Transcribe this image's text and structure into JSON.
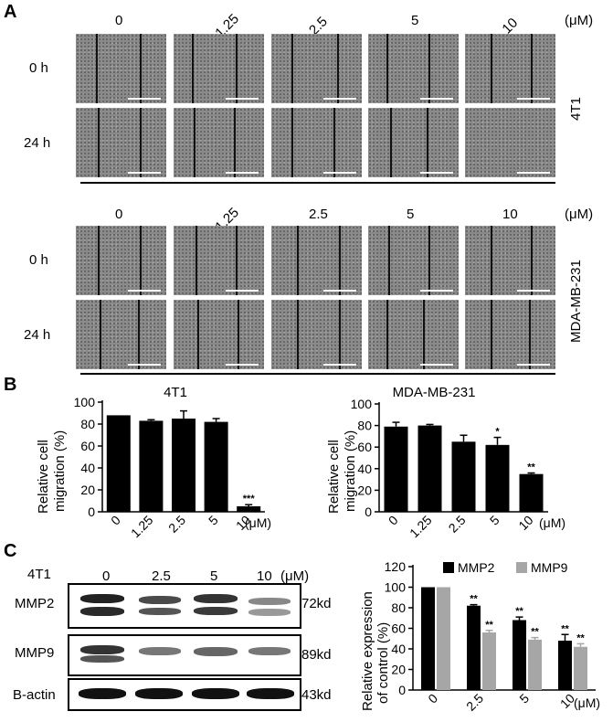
{
  "panel_a": {
    "letter": "A",
    "unit": "(μM)",
    "concentrations": [
      "0",
      "1.25",
      "2.5",
      "5",
      "10"
    ],
    "time_rows": [
      "0 h",
      "24 h"
    ],
    "cell_lines": [
      "4T1",
      "MDA-MB-231"
    ]
  },
  "panel_b": {
    "letter": "B"
  },
  "panel_c": {
    "letter": "C",
    "cell_line": "4T1",
    "unit": "(μM)",
    "concentrations": [
      "0",
      "2.5",
      "5",
      "10"
    ],
    "blots": [
      {
        "name": "MMP2",
        "size": "72kd"
      },
      {
        "name": "MMP9",
        "size": "89kd"
      },
      {
        "name": "B-actin",
        "size": "43kd"
      }
    ]
  },
  "chart_data": [
    {
      "type": "bar",
      "title": "4T1",
      "ylabel": "Relative cell migration (%)",
      "xunit": "(μM)",
      "categories": [
        "0",
        "1.25",
        "2.5",
        "5",
        "10"
      ],
      "values": [
        88,
        83,
        85,
        82,
        5
      ],
      "errors": [
        0,
        1,
        7,
        3,
        1.5
      ],
      "significance": [
        "",
        "",
        "",
        "",
        "***"
      ],
      "ylim": [
        0,
        100
      ],
      "yticks": [
        0,
        20,
        40,
        60,
        80,
        100
      ]
    },
    {
      "type": "bar",
      "title": "MDA-MB-231",
      "ylabel": "Relative cell migration (%)",
      "xunit": "(μM)",
      "categories": [
        "0",
        "1.25",
        "2.5",
        "5",
        "10"
      ],
      "values": [
        79,
        80,
        65,
        62,
        35
      ],
      "errors": [
        4,
        1,
        6,
        7,
        1
      ],
      "significance": [
        "",
        "",
        "",
        "*",
        "**"
      ],
      "ylim": [
        0,
        100
      ],
      "yticks": [
        0,
        20,
        40,
        60,
        80,
        100
      ]
    },
    {
      "type": "bar",
      "title": "",
      "ylabel": "Relative expression of control (%)",
      "xunit": "(μM)",
      "categories": [
        "0",
        "2.5",
        "5",
        "10"
      ],
      "series": [
        {
          "name": "MMP2",
          "color": "#000000",
          "values": [
            100,
            82,
            68,
            48
          ],
          "errors": [
            0,
            1,
            3,
            6
          ],
          "significance": [
            "",
            "**",
            "**",
            "**"
          ]
        },
        {
          "name": "MMP9",
          "color": "#a6a6a6",
          "values": [
            100,
            56,
            49,
            42
          ],
          "errors": [
            0,
            2,
            2,
            3
          ],
          "significance": [
            "",
            "**",
            "**",
            "**"
          ]
        }
      ],
      "legend": "top-right",
      "ylim": [
        0,
        120
      ],
      "yticks": [
        0,
        20,
        40,
        60,
        80,
        100,
        120
      ]
    }
  ]
}
